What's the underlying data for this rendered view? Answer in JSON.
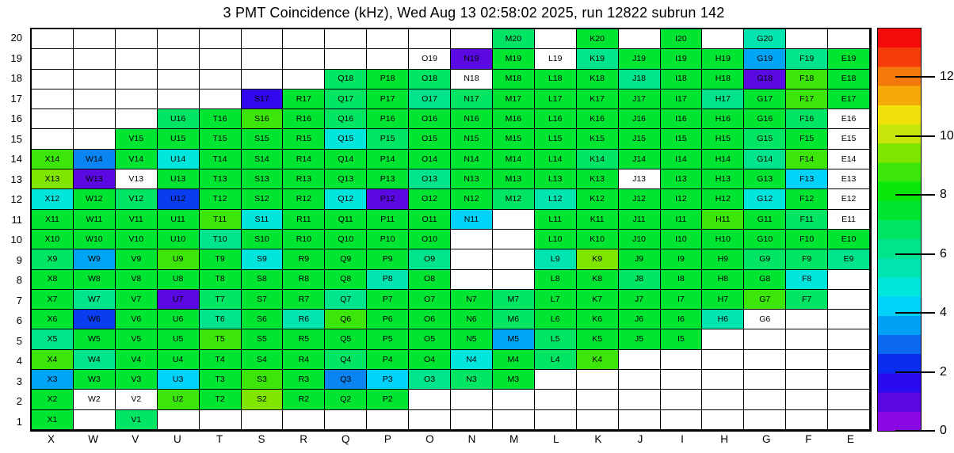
{
  "chart_data": {
    "type": "heatmap",
    "title": "3 PMT Coincidence (kHz), Wed Aug 13 02:58:02 2025, run 12822 subrun 142",
    "xlabel": "",
    "ylabel": "",
    "columns": [
      "X",
      "W",
      "V",
      "U",
      "T",
      "S",
      "R",
      "Q",
      "P",
      "O",
      "N",
      "M",
      "L",
      "K",
      "J",
      "I",
      "H",
      "G",
      "F",
      "E"
    ],
    "rows": [
      20,
      19,
      18,
      17,
      16,
      15,
      14,
      13,
      12,
      11,
      10,
      9,
      8,
      7,
      6,
      5,
      4,
      3,
      2,
      1
    ],
    "palette": {
      "e": {
        "hex": "#ffffff",
        "meaning": "no-channel",
        "approx_kHz": null
      },
      "w": {
        "hex": "#ffffff",
        "meaning": "no-data-labeled",
        "approx_kHz": null
      },
      "v": {
        "hex": "#5a0ae1",
        "meaning": "violet",
        "approx_kHz": 1.0
      },
      "V": {
        "hex": "#3307f0",
        "meaning": "blue-violet",
        "approx_kHz": 1.6
      },
      "B": {
        "hex": "#0a3df0",
        "meaning": "blue",
        "approx_kHz": 2.3
      },
      "d": {
        "hex": "#0984f0",
        "meaning": "dodger-blue",
        "approx_kHz": 3.0
      },
      "b": {
        "hex": "#00a4f5",
        "meaning": "sky-blue",
        "approx_kHz": 3.6
      },
      "C": {
        "hex": "#00d2fa",
        "meaning": "bright-cyan",
        "approx_kHz": 4.2
      },
      "c": {
        "hex": "#00e5dc",
        "meaning": "cyan",
        "approx_kHz": 4.9
      },
      "q": {
        "hex": "#00e4af",
        "meaning": "turquoise",
        "approx_kHz": 5.5
      },
      "t": {
        "hex": "#00e58c",
        "meaning": "teal-green",
        "approx_kHz": 6.2
      },
      "s": {
        "hex": "#00e563",
        "meaning": "spring-green",
        "approx_kHz": 6.8
      },
      "g": {
        "hex": "#00e432",
        "meaning": "green",
        "approx_kHz": 7.4
      },
      "l": {
        "hex": "#3ce60a",
        "meaning": "lime",
        "approx_kHz": 8.8
      },
      "h": {
        "hex": "#80e600",
        "meaning": "chartreuse",
        "approx_kHz": 9.4
      }
    },
    "cells": [
      [
        "",
        "",
        "",
        "",
        "",
        "",
        "",
        "",
        "",
        "",
        "",
        "s:M20",
        "",
        "g:K20",
        "",
        "g:I20",
        "",
        "q:G20",
        "",
        ""
      ],
      [
        "",
        "",
        "",
        "",
        "",
        "",
        "",
        "",
        "",
        "w:O19",
        "v:N19",
        "g:M19",
        "w:L19",
        "t:K19",
        "g:J19",
        "g:I19",
        "g:H19",
        "b:G19",
        "t:F19",
        "g:E19"
      ],
      [
        "",
        "",
        "",
        "",
        "",
        "",
        "",
        "s:Q18",
        "g:P18",
        "s:O18",
        "w:N18",
        "g:M18",
        "g:L18",
        "g:K18",
        "t:J18",
        "g:I18",
        "g:H18",
        "v:G18",
        "l:F18",
        "g:E18"
      ],
      [
        "",
        "",
        "",
        "",
        "",
        "V:S17",
        "g:R17",
        "s:Q17",
        "g:P17",
        "t:O17",
        "s:N17",
        "g:M17",
        "g:L17",
        "g:K17",
        "g:J17",
        "g:I17",
        "t:H17",
        "g:G17",
        "l:F17",
        "g:E17"
      ],
      [
        "",
        "",
        "",
        "s:U16",
        "g:T16",
        "l:S16",
        "g:R16",
        "s:Q16",
        "g:P16",
        "g:O16",
        "g:N16",
        "g:M16",
        "g:L16",
        "g:K16",
        "g:J16",
        "g:I16",
        "g:H16",
        "g:G16",
        "s:F16",
        "w:E16"
      ],
      [
        "",
        "",
        "g:V15",
        "g:U15",
        "g:T15",
        "g:S15",
        "g:R15",
        "c:Q15",
        "s:P15",
        "g:O15",
        "g:N15",
        "g:M15",
        "g:L15",
        "g:K15",
        "g:J15",
        "g:I15",
        "g:H15",
        "s:G15",
        "g:F15",
        "w:E15"
      ],
      [
        "l:X14",
        "d:W14",
        "g:V14",
        "c:U14",
        "g:T14",
        "g:S14",
        "g:R14",
        "g:Q14",
        "g:P14",
        "g:O14",
        "g:N14",
        "g:M14",
        "g:L14",
        "s:K14",
        "g:J14",
        "g:I14",
        "g:H14",
        "t:G14",
        "l:F14",
        "w:E14"
      ],
      [
        "h:X13",
        "v:W13",
        "w:V13",
        "g:U13",
        "g:T13",
        "g:S13",
        "g:R13",
        "g:Q13",
        "g:P13",
        "t:O13",
        "g:N13",
        "g:M13",
        "g:L13",
        "g:K13",
        "w:J13",
        "g:I13",
        "g:H13",
        "g:G13",
        "C:F13",
        "w:E13"
      ],
      [
        "c:X12",
        "g:W12",
        "s:V12",
        "B:U12",
        "g:T12",
        "g:S12",
        "g:R12",
        "c:Q12",
        "v:P12",
        "g:O12",
        "g:N12",
        "s:M12",
        "q:L12",
        "g:K12",
        "g:J12",
        "g:I12",
        "g:H12",
        "c:G12",
        "g:F12",
        "w:E12"
      ],
      [
        "g:X11",
        "g:W11",
        "g:V11",
        "g:U11",
        "l:T11",
        "c:S11",
        "g:R11",
        "g:Q11",
        "g:P11",
        "g:O11",
        "C:N11",
        "",
        "g:L11",
        "g:K11",
        "g:J11",
        "g:I11",
        "l:H11",
        "g:G11",
        "s:F11",
        "w:E11"
      ],
      [
        "g:X10",
        "g:W10",
        "g:V10",
        "g:U10",
        "t:T10",
        "g:S10",
        "g:R10",
        "g:Q10",
        "g:P10",
        "g:O10",
        "",
        "",
        "g:L10",
        "g:K10",
        "g:J10",
        "g:I10",
        "g:H10",
        "g:G10",
        "g:F10",
        "g:E10"
      ],
      [
        "s:X9",
        "b:W9",
        "g:V9",
        "l:U9",
        "g:T9",
        "c:S9",
        "g:R9",
        "g:Q9",
        "g:P9",
        "t:O9",
        "",
        "",
        "q:L9",
        "h:K9",
        "g:J9",
        "g:I9",
        "g:H9",
        "s:G9",
        "s:F9",
        "t:E9"
      ],
      [
        "g:X8",
        "g:W8",
        "g:V8",
        "g:U8",
        "g:T8",
        "g:S8",
        "g:R8",
        "g:Q8",
        "q:P8",
        "g:O8",
        "",
        "",
        "g:L8",
        "g:K8",
        "s:J8",
        "g:I8",
        "g:H8",
        "g:G8",
        "c:F8",
        ""
      ],
      [
        "g:X7",
        "t:W7",
        "g:V7",
        "v:U7",
        "s:T7",
        "g:S7",
        "g:R7",
        "t:Q7",
        "g:P7",
        "g:O7",
        "g:N7",
        "s:M7",
        "g:L7",
        "g:K7",
        "g:J7",
        "g:I7",
        "g:H7",
        "l:G7",
        "s:F7",
        ""
      ],
      [
        "g:X6",
        "B:W6",
        "g:V6",
        "g:U6",
        "t:T6",
        "g:S6",
        "q:R6",
        "l:Q6",
        "g:P6",
        "g:O6",
        "g:N6",
        "s:M6",
        "g:L6",
        "g:K6",
        "g:J6",
        "g:I6",
        "q:H6",
        "w:G6",
        "",
        ""
      ],
      [
        "t:X5",
        "g:W5",
        "g:V5",
        "g:U5",
        "l:T5",
        "g:S5",
        "g:R5",
        "g:Q5",
        "g:P5",
        "g:O5",
        "g:N5",
        "b:M5",
        "s:L5",
        "g:K5",
        "g:J5",
        "g:I5",
        "",
        "",
        "",
        ""
      ],
      [
        "l:X4",
        "t:W4",
        "g:V4",
        "g:U4",
        "g:T4",
        "g:S4",
        "g:R4",
        "s:Q4",
        "g:P4",
        "g:O4",
        "c:N4",
        "g:M4",
        "s:L4",
        "l:K4",
        "",
        "",
        "",
        "",
        "",
        ""
      ],
      [
        "b:X3",
        "g:W3",
        "g:V3",
        "C:U3",
        "g:T3",
        "l:S3",
        "g:R3",
        "d:Q3",
        "C:P3",
        "t:O3",
        "s:N3",
        "g:M3",
        "",
        "",
        "",
        "",
        "",
        "",
        "",
        ""
      ],
      [
        "g:X2",
        "w:W2",
        "w:V2",
        "l:U2",
        "g:T2",
        "h:S2",
        "g:R2",
        "g:Q2",
        "g:P2",
        "",
        "",
        "",
        "",
        "",
        "",
        "",
        "",
        "",
        "",
        ""
      ],
      [
        "g:X1",
        "",
        "s:V1",
        "",
        "",
        "",
        "",
        "",
        "",
        "",
        "",
        "",
        "",
        "",
        "",
        "",
        "",
        "",
        "",
        ""
      ]
    ],
    "colorbar": {
      "max": 13.65,
      "ticks": [
        0,
        2,
        4,
        6,
        8,
        10,
        12
      ],
      "bands_bottom_to_top": [
        "#8a08e1",
        "#5a0ae1",
        "#2a0af0",
        "#0a2df0",
        "#0a69f0",
        "#00a0f5",
        "#00d2fa",
        "#00e5dc",
        "#00e4af",
        "#00e58c",
        "#00e563",
        "#00e432",
        "#0ae60a",
        "#3ce60a",
        "#80e600",
        "#c8e60a",
        "#f0e10a",
        "#f5aa0a",
        "#f5780a",
        "#f53c0a",
        "#f50a0a"
      ]
    }
  }
}
